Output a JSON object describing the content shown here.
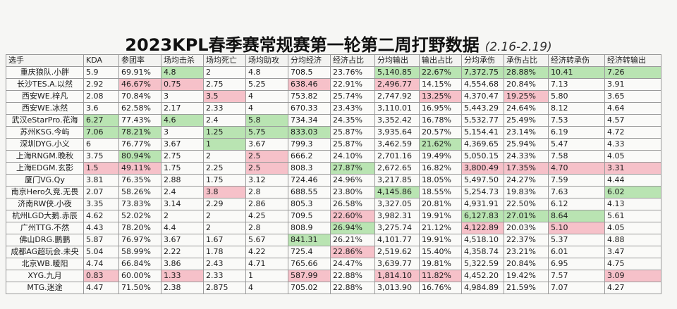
{
  "title": "2023KPL春季赛常规赛第一轮第二周打野数据",
  "subtitle": "(2.16-2.19)",
  "colors": {
    "highlight_good": "#b9e4b2",
    "highlight_bad": "#f6c1c9"
  },
  "table": {
    "headers": [
      "选手",
      "KDA",
      "参团率",
      "场均击杀",
      "场均死亡",
      "场均助攻",
      "分均经济",
      "经济占比",
      "分均输出",
      "输出占比",
      "分均承伤",
      "承伤占比",
      "经济转承伤",
      "经济转输出"
    ],
    "rows": [
      [
        "重庆狼队.小胖",
        "5.9",
        "69.91%",
        "4.8",
        "2",
        "4.8",
        "708.5",
        "23.76%",
        "5,140.85",
        "22.67%",
        "7,372.75",
        "28.88%",
        "10.41",
        "7.26"
      ],
      [
        "长沙TES.A.以然",
        "2.92",
        "46.67%",
        "0.75",
        "2.75",
        "5.25",
        "638.46",
        "22.91%",
        "2,496.77",
        "14.15%",
        "4,554.68",
        "20.84%",
        "7.13",
        "3.91"
      ],
      [
        "西安WE.梓凡",
        "2.08",
        "70.84%",
        "3",
        "3.5",
        "4",
        "753.82",
        "25.74%",
        "2,747.92",
        "13.25%",
        "4,370.47",
        "19.25%",
        "5.80",
        "3.65"
      ],
      [
        "西安WE.冰然",
        "3.6",
        "62.58%",
        "2.17",
        "2.33",
        "4",
        "670.33",
        "23.43%",
        "3,110.01",
        "16.95%",
        "5,443.29",
        "24.64%",
        "8.12",
        "4.64"
      ],
      [
        "武汉eStarPro.花海",
        "6.27",
        "77.43%",
        "4.6",
        "2.4",
        "5.8",
        "734.34",
        "24.35%",
        "3,352.42",
        "16.78%",
        "5,532.77",
        "25.49%",
        "7.53",
        "4.57"
      ],
      [
        "苏州KSG.今屿",
        "7.06",
        "78.21%",
        "3",
        "1.25",
        "5.75",
        "833.03",
        "25.87%",
        "3,935.64",
        "20.57%",
        "5,154.41",
        "23.14%",
        "6.19",
        "4.72"
      ],
      [
        "深圳DYG.小义",
        "6",
        "76.77%",
        "3.67",
        "1",
        "3.67",
        "799.3",
        "25.87%",
        "3,462.59",
        "21.62%",
        "4,369.65",
        "25.94%",
        "5.47",
        "4.33"
      ],
      [
        "上海RNGM.晚秋",
        "3.75",
        "80.94%",
        "2.75",
        "2",
        "2.5",
        "666.2",
        "24.10%",
        "2,701.16",
        "19.49%",
        "5,050.15",
        "24.33%",
        "7.58",
        "4.05"
      ],
      [
        "上海EDGM.玄影",
        "1.5",
        "49.11%",
        "1.75",
        "2.25",
        "2.5",
        "808.3",
        "27.87%",
        "2,672.65",
        "16.82%",
        "3,800.49",
        "17.35%",
        "4.70",
        "3.31"
      ],
      [
        "厦门VG.Qy",
        "3.81",
        "76.35%",
        "2.88",
        "1.75",
        "3.12",
        "724.46",
        "24.96%",
        "3,217.85",
        "18.05%",
        "5,497.50",
        "24.27%",
        "7.59",
        "4.44"
      ],
      [
        "南京Hero久竞.无畏",
        "2.07",
        "58.26%",
        "2.4",
        "3.8",
        "2.8",
        "688.55",
        "23.80%",
        "4,145.86",
        "18.55%",
        "5,254.73",
        "19.83%",
        "7.63",
        "6.02"
      ],
      [
        "济南RW侠.小夜",
        "3.35",
        "73.83%",
        "3.14",
        "2.29",
        "2.86",
        "805.3",
        "26.58%",
        "3,327.05",
        "20.81%",
        "4,931.91",
        "22.50%",
        "6.12",
        "4.13"
      ],
      [
        "杭州LGD大鹅.赤辰",
        "4.62",
        "52.02%",
        "2",
        "2",
        "4.25",
        "709.5",
        "22.60%",
        "3,982.31",
        "19.91%",
        "6,127.83",
        "27.01%",
        "8.64",
        "5.61"
      ],
      [
        "广州TTG.不然",
        "4.43",
        "78.20%",
        "4.4",
        "2",
        "2.8",
        "808.9",
        "26.94%",
        "3,275.74",
        "21.12%",
        "4,122.89",
        "20.03%",
        "5.10",
        "4.05"
      ],
      [
        "佛山DRG.鹏鹏",
        "5.87",
        "76.97%",
        "3.67",
        "1.67",
        "5.67",
        "841.31",
        "26.21%",
        "4,101.77",
        "19.91%",
        "4,518.10",
        "22.37%",
        "5.37",
        "4.88"
      ],
      [
        "成都AG超玩会.未央",
        "5.04",
        "58.99%",
        "2.22",
        "1.78",
        "4.22",
        "725.4",
        "22.86%",
        "2,519.62",
        "15.40%",
        "4,358.74",
        "23.21%",
        "6.01",
        "3.47"
      ],
      [
        "北京WB.暖阳",
        "4.74",
        "66.84%",
        "3.86",
        "2.43",
        "4.71",
        "765.66",
        "24.47%",
        "3,639.77",
        "19.81%",
        "5,322.59",
        "20.84%",
        "6.95",
        "4.75"
      ],
      [
        "XYG.九月",
        "0.83",
        "60.00%",
        "1.33",
        "2.33",
        "1",
        "587.99",
        "22.88%",
        "1,814.10",
        "11.82%",
        "4,452.20",
        "19.42%",
        "7.57",
        "3.09"
      ],
      [
        "MTG.迷途",
        "4.47",
        "71.50%",
        "2.38",
        "2.875",
        "4",
        "705.02",
        "22.88%",
        "3,013.90",
        "16.76%",
        "4,984.89",
        "21.59%",
        "7.07",
        "4.27"
      ]
    ],
    "highlights": [
      "",
      "",
      "",
      "",
      "",
      "",
      "",
      "",
      "",
      "",
      "",
      "",
      "",
      ""
    ]
  }
}
